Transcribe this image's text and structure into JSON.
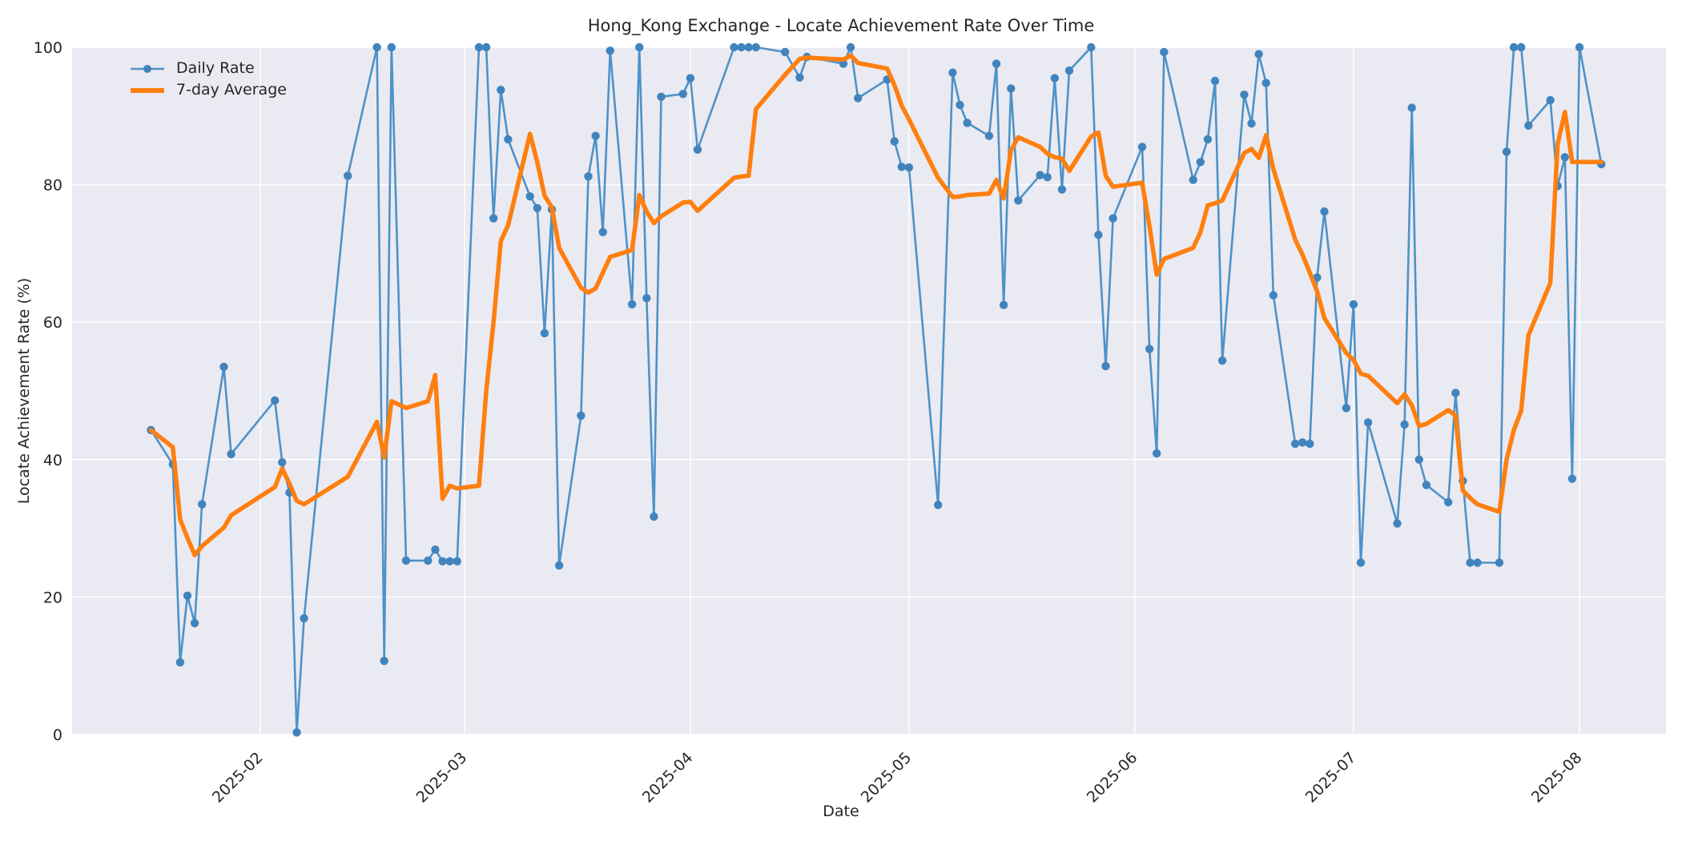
{
  "title": "Hong_Kong Exchange - Locate Achievement Rate Over Time",
  "axes": {
    "x_label": "Date",
    "y_label": "Locate Achievement Rate (%)",
    "y_ticks": [
      0,
      20,
      40,
      60,
      80,
      100
    ],
    "x_ticks": [
      {
        "label": "2025-02",
        "date": "2025-02-01"
      },
      {
        "label": "2025-03",
        "date": "2025-03-01"
      },
      {
        "label": "2025-04",
        "date": "2025-04-01"
      },
      {
        "label": "2025-05",
        "date": "2025-05-01"
      },
      {
        "label": "2025-06",
        "date": "2025-06-01"
      },
      {
        "label": "2025-07",
        "date": "2025-07-01"
      },
      {
        "label": "2025-08",
        "date": "2025-08-01"
      }
    ]
  },
  "legend": [
    {
      "label": "Daily Rate",
      "color": "#4e92c8",
      "type": "line-marker"
    },
    {
      "label": "7-day Average",
      "color": "#ff7f0e",
      "type": "line"
    }
  ],
  "colors": {
    "plot_bg": "#eaeaf2",
    "grid": "#ffffff",
    "daily": "#4e92c8",
    "daily_marker": "#4184bd",
    "average": "#ff7f0e",
    "text": "#262626"
  },
  "chart_data": {
    "type": "line",
    "x_unit": "date",
    "ylim": [
      0,
      100
    ],
    "grid": true,
    "legend_position": "upper left",
    "series": [
      {
        "name": "Daily Rate",
        "marker": true,
        "line_width": 2.6,
        "points": [
          [
            "2025-01-17",
            44.3
          ],
          [
            "2025-01-20",
            39.3
          ],
          [
            "2025-01-21",
            10.5
          ],
          [
            "2025-01-22",
            20.2
          ],
          [
            "2025-01-23",
            16.2
          ],
          [
            "2025-01-24",
            33.5
          ],
          [
            "2025-01-27",
            53.5
          ],
          [
            "2025-01-28",
            40.8
          ],
          [
            "2025-02-03",
            48.6
          ],
          [
            "2025-02-04",
            39.6
          ],
          [
            "2025-02-05",
            35.2
          ],
          [
            "2025-02-06",
            0.3
          ],
          [
            "2025-02-07",
            16.9
          ],
          [
            "2025-02-13",
            81.3
          ],
          [
            "2025-02-17",
            100
          ],
          [
            "2025-02-18",
            10.7
          ],
          [
            "2025-02-19",
            100
          ],
          [
            "2025-02-21",
            25.3
          ],
          [
            "2025-02-24",
            25.3
          ],
          [
            "2025-02-25",
            26.9
          ],
          [
            "2025-02-26",
            25.2
          ],
          [
            "2025-02-27",
            25.2
          ],
          [
            "2025-02-28",
            25.2
          ],
          [
            "2025-03-03",
            100
          ],
          [
            "2025-03-04",
            100
          ],
          [
            "2025-03-05",
            75.1
          ],
          [
            "2025-03-06",
            93.8
          ],
          [
            "2025-03-07",
            86.6
          ],
          [
            "2025-03-10",
            78.3
          ],
          [
            "2025-03-11",
            76.6
          ],
          [
            "2025-03-12",
            58.4
          ],
          [
            "2025-03-13",
            76.4
          ],
          [
            "2025-03-14",
            24.6
          ],
          [
            "2025-03-17",
            46.4
          ],
          [
            "2025-03-18",
            81.2
          ],
          [
            "2025-03-19",
            87.1
          ],
          [
            "2025-03-20",
            73.1
          ],
          [
            "2025-03-21",
            99.5
          ],
          [
            "2025-03-24",
            62.6
          ],
          [
            "2025-03-25",
            100
          ],
          [
            "2025-03-26",
            63.5
          ],
          [
            "2025-03-27",
            31.7
          ],
          [
            "2025-03-28",
            92.8
          ],
          [
            "2025-03-31",
            93.2
          ],
          [
            "2025-04-01",
            95.5
          ],
          [
            "2025-04-02",
            85.1
          ],
          [
            "2025-04-07",
            100
          ],
          [
            "2025-04-08",
            100
          ],
          [
            "2025-04-09",
            100
          ],
          [
            "2025-04-10",
            100
          ],
          [
            "2025-04-14",
            99.3
          ],
          [
            "2025-04-16",
            95.6
          ],
          [
            "2025-04-17",
            98.6
          ],
          [
            "2025-04-22",
            97.6
          ],
          [
            "2025-04-23",
            100
          ],
          [
            "2025-04-24",
            92.6
          ],
          [
            "2025-04-28",
            95.3
          ],
          [
            "2025-04-29",
            86.3
          ],
          [
            "2025-04-30",
            82.6
          ],
          [
            "2025-05-01",
            82.5
          ],
          [
            "2025-05-05",
            33.4
          ],
          [
            "2025-05-07",
            96.3
          ],
          [
            "2025-05-08",
            91.6
          ],
          [
            "2025-05-09",
            89.0
          ],
          [
            "2025-05-12",
            87.1
          ],
          [
            "2025-05-13",
            97.6
          ],
          [
            "2025-05-14",
            62.5
          ],
          [
            "2025-05-15",
            94.0
          ],
          [
            "2025-05-16",
            77.7
          ],
          [
            "2025-05-19",
            81.4
          ],
          [
            "2025-05-20",
            81.1
          ],
          [
            "2025-05-21",
            95.5
          ],
          [
            "2025-05-22",
            79.3
          ],
          [
            "2025-05-23",
            96.6
          ],
          [
            "2025-05-26",
            100
          ],
          [
            "2025-05-27",
            72.7
          ],
          [
            "2025-05-28",
            53.6
          ],
          [
            "2025-05-29",
            75.1
          ],
          [
            "2025-06-02",
            85.5
          ],
          [
            "2025-06-03",
            56.1
          ],
          [
            "2025-06-04",
            40.9
          ],
          [
            "2025-06-05",
            99.3
          ],
          [
            "2025-06-09",
            80.7
          ],
          [
            "2025-06-10",
            83.3
          ],
          [
            "2025-06-11",
            86.6
          ],
          [
            "2025-06-12",
            95.1
          ],
          [
            "2025-06-13",
            54.4
          ],
          [
            "2025-06-16",
            93.1
          ],
          [
            "2025-06-17",
            88.9
          ],
          [
            "2025-06-18",
            99.0
          ],
          [
            "2025-06-19",
            94.8
          ],
          [
            "2025-06-20",
            63.9
          ],
          [
            "2025-06-23",
            42.3
          ],
          [
            "2025-06-24",
            42.5
          ],
          [
            "2025-06-25",
            42.3
          ],
          [
            "2025-06-26",
            66.5
          ],
          [
            "2025-06-27",
            76.1
          ],
          [
            "2025-06-30",
            47.5
          ],
          [
            "2025-07-01",
            62.6
          ],
          [
            "2025-07-02",
            25.0
          ],
          [
            "2025-07-03",
            45.4
          ],
          [
            "2025-07-07",
            30.7
          ],
          [
            "2025-07-08",
            45.1
          ],
          [
            "2025-07-09",
            91.2
          ],
          [
            "2025-07-10",
            40.0
          ],
          [
            "2025-07-11",
            36.3
          ],
          [
            "2025-07-14",
            33.8
          ],
          [
            "2025-07-15",
            49.7
          ],
          [
            "2025-07-16",
            36.9
          ],
          [
            "2025-07-17",
            25.0
          ],
          [
            "2025-07-18",
            25.0
          ],
          [
            "2025-07-21",
            25.0
          ],
          [
            "2025-07-22",
            84.8
          ],
          [
            "2025-07-23",
            100
          ],
          [
            "2025-07-24",
            100
          ],
          [
            "2025-07-25",
            88.6
          ],
          [
            "2025-07-28",
            92.3
          ],
          [
            "2025-07-29",
            79.8
          ],
          [
            "2025-07-30",
            84.0
          ],
          [
            "2025-07-31",
            37.2
          ],
          [
            "2025-08-01",
            100
          ],
          [
            "2025-08-04",
            83.0
          ]
        ]
      },
      {
        "name": "7-day Average",
        "marker": false,
        "line_width": 5.5,
        "points": [
          [
            "2025-01-17",
            44.3
          ],
          [
            "2025-01-20",
            41.8
          ],
          [
            "2025-01-21",
            31.3
          ],
          [
            "2025-01-22",
            28.6
          ],
          [
            "2025-01-23",
            26.1
          ],
          [
            "2025-01-24",
            27.4
          ],
          [
            "2025-01-27",
            30.1
          ],
          [
            "2025-01-28",
            31.9
          ],
          [
            "2025-02-03",
            36.0
          ],
          [
            "2025-02-04",
            38.7
          ],
          [
            "2025-02-05",
            36.5
          ],
          [
            "2025-02-06",
            34.0
          ],
          [
            "2025-02-07",
            33.5
          ],
          [
            "2025-02-13",
            37.5
          ],
          [
            "2025-02-17",
            45.5
          ],
          [
            "2025-02-18",
            40.3
          ],
          [
            "2025-02-19",
            48.5
          ],
          [
            "2025-02-21",
            47.5
          ],
          [
            "2025-02-24",
            48.5
          ],
          [
            "2025-02-25",
            52.3
          ],
          [
            "2025-02-26",
            34.3
          ],
          [
            "2025-02-27",
            36.2
          ],
          [
            "2025-02-28",
            35.8
          ],
          [
            "2025-03-03",
            36.2
          ],
          [
            "2025-03-04",
            50.0
          ],
          [
            "2025-03-05",
            60.0
          ],
          [
            "2025-03-06",
            71.8
          ],
          [
            "2025-03-07",
            74.1
          ],
          [
            "2025-03-10",
            87.4
          ],
          [
            "2025-03-11",
            83.3
          ],
          [
            "2025-03-12",
            78.4
          ],
          [
            "2025-03-13",
            76.7
          ],
          [
            "2025-03-14",
            70.8
          ],
          [
            "2025-03-17",
            65.0
          ],
          [
            "2025-03-18",
            64.3
          ],
          [
            "2025-03-19",
            64.9
          ],
          [
            "2025-03-20",
            67.2
          ],
          [
            "2025-03-21",
            69.5
          ],
          [
            "2025-03-24",
            70.5
          ],
          [
            "2025-03-25",
            78.5
          ],
          [
            "2025-03-26",
            76.1
          ],
          [
            "2025-03-27",
            74.4
          ],
          [
            "2025-03-28",
            75.4
          ],
          [
            "2025-03-31",
            77.4
          ],
          [
            "2025-04-01",
            77.5
          ],
          [
            "2025-04-02",
            76.2
          ],
          [
            "2025-04-07",
            81.0
          ],
          [
            "2025-04-08",
            81.2
          ],
          [
            "2025-04-09",
            81.3
          ],
          [
            "2025-04-10",
            91.0
          ],
          [
            "2025-04-14",
            96.0
          ],
          [
            "2025-04-16",
            98.3
          ],
          [
            "2025-04-17",
            98.5
          ],
          [
            "2025-04-22",
            98.2
          ],
          [
            "2025-04-23",
            98.8
          ],
          [
            "2025-04-24",
            97.7
          ],
          [
            "2025-04-28",
            96.9
          ],
          [
            "2025-04-29",
            94.5
          ],
          [
            "2025-04-30",
            91.5
          ],
          [
            "2025-05-01",
            89.5
          ],
          [
            "2025-05-05",
            81.0
          ],
          [
            "2025-05-07",
            78.2
          ],
          [
            "2025-05-08",
            78.3
          ],
          [
            "2025-05-09",
            78.5
          ],
          [
            "2025-05-12",
            78.7
          ],
          [
            "2025-05-13",
            80.7
          ],
          [
            "2025-05-14",
            78.0
          ],
          [
            "2025-05-15",
            85.0
          ],
          [
            "2025-05-16",
            86.9
          ],
          [
            "2025-05-19",
            85.5
          ],
          [
            "2025-05-20",
            84.5
          ],
          [
            "2025-05-21",
            84.0
          ],
          [
            "2025-05-22",
            83.8
          ],
          [
            "2025-05-23",
            82.0
          ],
          [
            "2025-05-26",
            87.0
          ],
          [
            "2025-05-27",
            87.6
          ],
          [
            "2025-05-28",
            81.3
          ],
          [
            "2025-05-29",
            79.7
          ],
          [
            "2025-06-02",
            80.3
          ],
          [
            "2025-06-03",
            74.0
          ],
          [
            "2025-06-04",
            66.9
          ],
          [
            "2025-06-05",
            69.2
          ],
          [
            "2025-06-09",
            70.8
          ],
          [
            "2025-06-10",
            73.1
          ],
          [
            "2025-06-11",
            77.0
          ],
          [
            "2025-06-12",
            77.3
          ],
          [
            "2025-06-13",
            77.7
          ],
          [
            "2025-06-16",
            84.6
          ],
          [
            "2025-06-17",
            85.2
          ],
          [
            "2025-06-18",
            83.9
          ],
          [
            "2025-06-19",
            87.2
          ],
          [
            "2025-06-20",
            82.3
          ],
          [
            "2025-06-23",
            72.0
          ],
          [
            "2025-06-24",
            69.8
          ],
          [
            "2025-06-25",
            67.2
          ],
          [
            "2025-06-26",
            64.5
          ],
          [
            "2025-06-27",
            60.6
          ],
          [
            "2025-06-30",
            55.5
          ],
          [
            "2025-07-01",
            54.5
          ],
          [
            "2025-07-02",
            52.5
          ],
          [
            "2025-07-03",
            52.2
          ],
          [
            "2025-07-07",
            48.2
          ],
          [
            "2025-07-08",
            49.5
          ],
          [
            "2025-07-09",
            47.9
          ],
          [
            "2025-07-10",
            44.9
          ],
          [
            "2025-07-11",
            45.2
          ],
          [
            "2025-07-14",
            47.2
          ],
          [
            "2025-07-15",
            46.4
          ],
          [
            "2025-07-16",
            35.5
          ],
          [
            "2025-07-17",
            34.4
          ],
          [
            "2025-07-18",
            33.5
          ],
          [
            "2025-07-21",
            32.4
          ],
          [
            "2025-07-22",
            40.0
          ],
          [
            "2025-07-23",
            44.3
          ],
          [
            "2025-07-24",
            47.1
          ],
          [
            "2025-07-25",
            58.1
          ],
          [
            "2025-07-28",
            65.7
          ],
          [
            "2025-07-29",
            85.9
          ],
          [
            "2025-07-30",
            90.6
          ],
          [
            "2025-07-31",
            83.3
          ],
          [
            "2025-08-01",
            83.3
          ],
          [
            "2025-08-04",
            83.3
          ]
        ]
      }
    ]
  }
}
